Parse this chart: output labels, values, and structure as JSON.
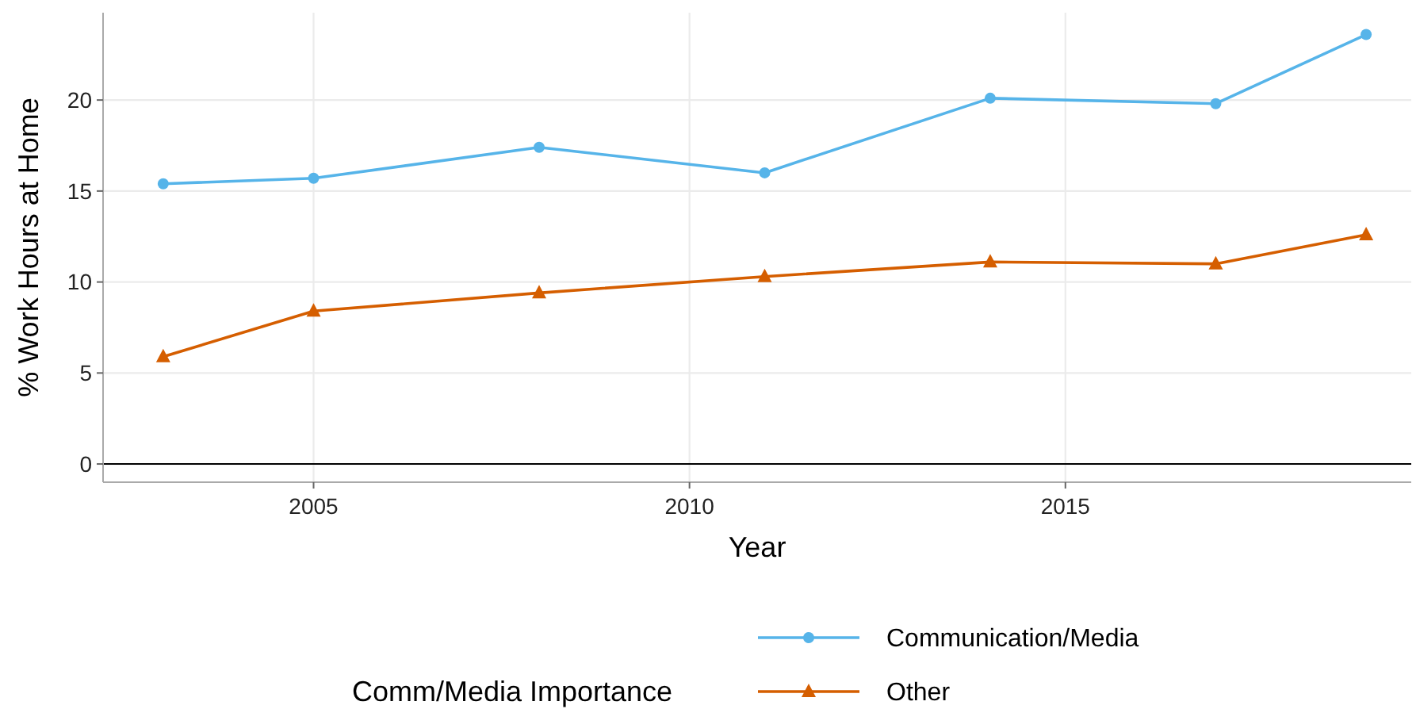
{
  "chart_data": {
    "type": "line",
    "xlabel": "Year",
    "ylabel": "% Work Hours at Home",
    "legend_title": "Comm/Media Importance",
    "x": [
      2003,
      2005,
      2008,
      2011,
      2014,
      2017,
      2019
    ],
    "series": [
      {
        "name": "Communication/Media",
        "color": "#56b4e9",
        "marker": "circle",
        "values": [
          15.4,
          15.7,
          17.4,
          16.0,
          20.1,
          19.8,
          23.6
        ]
      },
      {
        "name": "Other",
        "color": "#d55e00",
        "marker": "triangle",
        "values": [
          5.9,
          8.4,
          9.4,
          10.3,
          11.1,
          11.0,
          12.6
        ]
      }
    ],
    "xlim": [
      2002.2,
      2019.6
    ],
    "xticks": [
      2005,
      2010,
      2015
    ],
    "ylim": [
      -1,
      24.8
    ],
    "yticks": [
      0,
      5,
      10,
      15,
      20
    ],
    "ref_lines": [
      {
        "axis": "y",
        "value": 0,
        "color": "#000000"
      }
    ],
    "grid": true,
    "legend": "bottom",
    "line_style": "solid"
  }
}
